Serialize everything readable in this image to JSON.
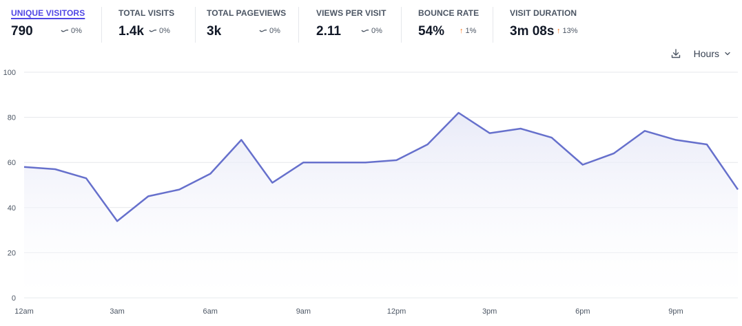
{
  "stats": [
    {
      "label": "UNIQUE VISITORS",
      "value": "790",
      "change": "0%",
      "trend": "flat",
      "active": true
    },
    {
      "label": "TOTAL VISITS",
      "value": "1.4k",
      "change": "0%",
      "trend": "flat",
      "active": false
    },
    {
      "label": "TOTAL PAGEVIEWS",
      "value": "3k",
      "change": "0%",
      "trend": "flat",
      "active": false
    },
    {
      "label": "VIEWS PER VISIT",
      "value": "2.11",
      "change": "0%",
      "trend": "flat",
      "active": false
    },
    {
      "label": "BOUNCE RATE",
      "value": "54%",
      "change": "1%",
      "trend": "up",
      "active": false
    },
    {
      "label": "VISIT DURATION",
      "value": "3m 08s",
      "change": "13%",
      "trend": "up",
      "active": false
    }
  ],
  "controls": {
    "download_icon": "download-icon",
    "interval_label": "Hours"
  },
  "colors": {
    "line": "#6670cc",
    "fill_top": "#e6e8f7",
    "grid": "#e5e7eb",
    "active_tab": "#4f46e5",
    "trend_up": "#f97316"
  },
  "chart_data": {
    "type": "area",
    "x": [
      "12am",
      "1am",
      "2am",
      "3am",
      "4am",
      "5am",
      "6am",
      "7am",
      "8am",
      "9am",
      "10am",
      "11am",
      "12pm",
      "1pm",
      "2pm",
      "3pm",
      "4pm",
      "5pm",
      "6pm",
      "7pm",
      "8pm",
      "9pm",
      "10pm",
      "11pm"
    ],
    "x_tick_labels": [
      "12am",
      "3am",
      "6am",
      "9am",
      "12pm",
      "3pm",
      "6pm",
      "9pm"
    ],
    "series": [
      {
        "values": [
          58,
          57,
          53,
          34,
          45,
          48,
          55,
          70,
          51,
          60,
          60,
          60,
          61,
          68,
          82,
          73,
          75,
          71,
          59,
          64,
          74,
          70,
          68,
          48
        ]
      }
    ],
    "y_ticks": [
      0,
      20,
      40,
      60,
      80,
      100
    ],
    "ylim": [
      0,
      100
    ],
    "grid": true,
    "legend": "none"
  }
}
